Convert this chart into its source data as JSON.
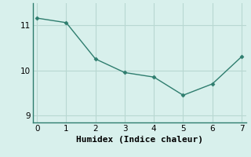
{
  "x": [
    0,
    1,
    2,
    3,
    4,
    5,
    6,
    7
  ],
  "y": [
    11.15,
    11.05,
    10.25,
    9.95,
    9.85,
    9.45,
    9.7,
    10.3
  ],
  "line_color": "#2e7d6e",
  "marker": "D",
  "marker_size": 2.5,
  "linewidth": 1.0,
  "xlabel": "Humidex (Indice chaleur)",
  "xlabel_fontsize": 8,
  "bg_color": "#d8f0ec",
  "plot_bg_color": "#d8f0ec",
  "grid_color": "#b8d8d2",
  "spine_color": "#2e7d6e",
  "yticks": [
    9,
    10,
    11
  ],
  "xticks": [
    0,
    1,
    2,
    3,
    4,
    5,
    6,
    7
  ],
  "xlim": [
    -0.15,
    7.15
  ],
  "ylim": [
    8.85,
    11.48
  ],
  "tick_fontsize": 7.5
}
